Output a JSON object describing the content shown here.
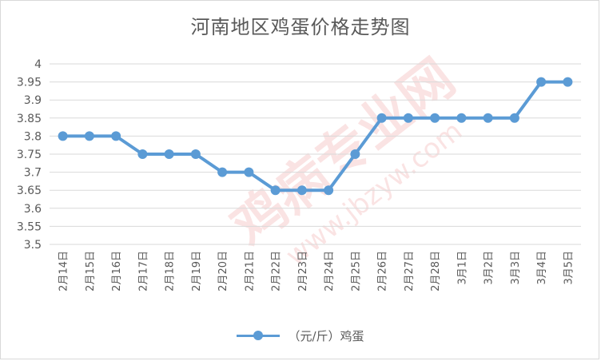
{
  "chart_data": {
    "type": "line",
    "title": "河南地区鸡蛋价格走势图",
    "xlabel": "",
    "ylabel": "",
    "categories": [
      "2月14日",
      "2月15日",
      "2月16日",
      "2月17日",
      "2月18日",
      "2月19日",
      "2月20日",
      "2月21日",
      "2月22日",
      "2月23日",
      "2月24日",
      "2月25日",
      "2月26日",
      "2月27日",
      "2月28日",
      "3月1日",
      "3月2日",
      "3月3日",
      "3月4日",
      "3月5日"
    ],
    "series": [
      {
        "name": "（元/斤）鸡蛋",
        "values": [
          3.8,
          3.8,
          3.8,
          3.75,
          3.75,
          3.75,
          3.7,
          3.7,
          3.65,
          3.65,
          3.65,
          3.75,
          3.85,
          3.85,
          3.85,
          3.85,
          3.85,
          3.85,
          3.95,
          3.95
        ]
      }
    ],
    "ylim": [
      3.5,
      4
    ],
    "yticks": [
      "3.5",
      "3.55",
      "3.6",
      "3.65",
      "3.7",
      "3.75",
      "3.8",
      "3.85",
      "3.9",
      "3.95",
      "4"
    ],
    "grid": true,
    "legend_position": "bottom",
    "colors": {
      "series": "#5b9bd5",
      "grid": "#d9d9d9",
      "text": "#595959"
    }
  },
  "watermark": {
    "text": "鸡病专业网",
    "url": "www.jbzyw.com"
  }
}
